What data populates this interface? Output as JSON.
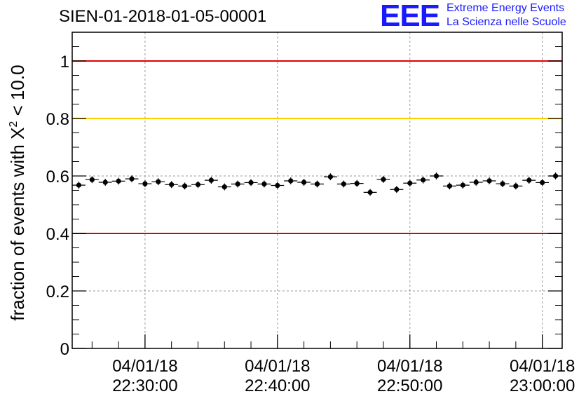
{
  "chart_data": {
    "type": "scatter",
    "title": "SIEN-01-2018-01-05-00001",
    "ylabel_prefix": "fraction of events with ",
    "ylabel_symbol": "X",
    "ylabel_sup": "2",
    "ylabel_suffix": " < 10.0",
    "xlabel": "",
    "ylim": [
      0,
      1.1
    ],
    "xlim_minutes": [
      22.0,
      59.0
    ],
    "yticks": [
      {
        "value": 0,
        "label": "0"
      },
      {
        "value": 0.2,
        "label": "0.2"
      },
      {
        "value": 0.4,
        "label": "0.4"
      },
      {
        "value": 0.6,
        "label": "0.6"
      },
      {
        "value": 0.8,
        "label": "0.8"
      },
      {
        "value": 1,
        "label": "1"
      }
    ],
    "xticks": [
      {
        "minute": 27.5,
        "date": "04/01/18",
        "time": "22:30:00"
      },
      {
        "minute": 37.5,
        "date": "04/01/18",
        "time": "22:40:00"
      },
      {
        "minute": 47.5,
        "date": "04/01/18",
        "time": "22:50:00"
      },
      {
        "minute": 57.5,
        "date": "04/01/18",
        "time": "23:00:00"
      }
    ],
    "reference_lines": [
      {
        "value": 1.0,
        "color": "#e00000"
      },
      {
        "value": 0.8,
        "color": "#ffcc00"
      },
      {
        "value": 0.4,
        "color": "#e00000"
      }
    ],
    "series": [
      {
        "name": "fraction",
        "color": "#000000",
        "x_minutes": [
          22.5,
          23.5,
          24.5,
          25.5,
          26.5,
          27.5,
          28.5,
          29.5,
          30.5,
          31.5,
          32.5,
          33.5,
          34.5,
          35.5,
          36.5,
          37.5,
          38.5,
          39.5,
          40.5,
          41.5,
          42.5,
          43.5,
          44.5,
          45.5,
          46.5,
          47.5,
          48.5,
          49.5,
          50.5,
          51.5,
          52.5,
          53.5,
          54.5,
          55.5,
          56.5,
          57.5,
          58.5
        ],
        "y": [
          0.568,
          0.587,
          0.578,
          0.582,
          0.59,
          0.573,
          0.58,
          0.57,
          0.565,
          0.57,
          0.585,
          0.562,
          0.572,
          0.577,
          0.572,
          0.567,
          0.583,
          0.578,
          0.572,
          0.597,
          0.572,
          0.574,
          0.543,
          0.588,
          0.553,
          0.575,
          0.586,
          0.6,
          0.565,
          0.568,
          0.578,
          0.583,
          0.573,
          0.565,
          0.585,
          0.577,
          0.6
        ],
        "yerr": 0.012
      }
    ]
  },
  "logo": {
    "mark": "EEE",
    "line1": "Extreme Energy Events",
    "line2": "La Scienza nelle Scuole"
  },
  "colors": {
    "logo_blue": "#1a1aff",
    "grid": "#999999"
  }
}
